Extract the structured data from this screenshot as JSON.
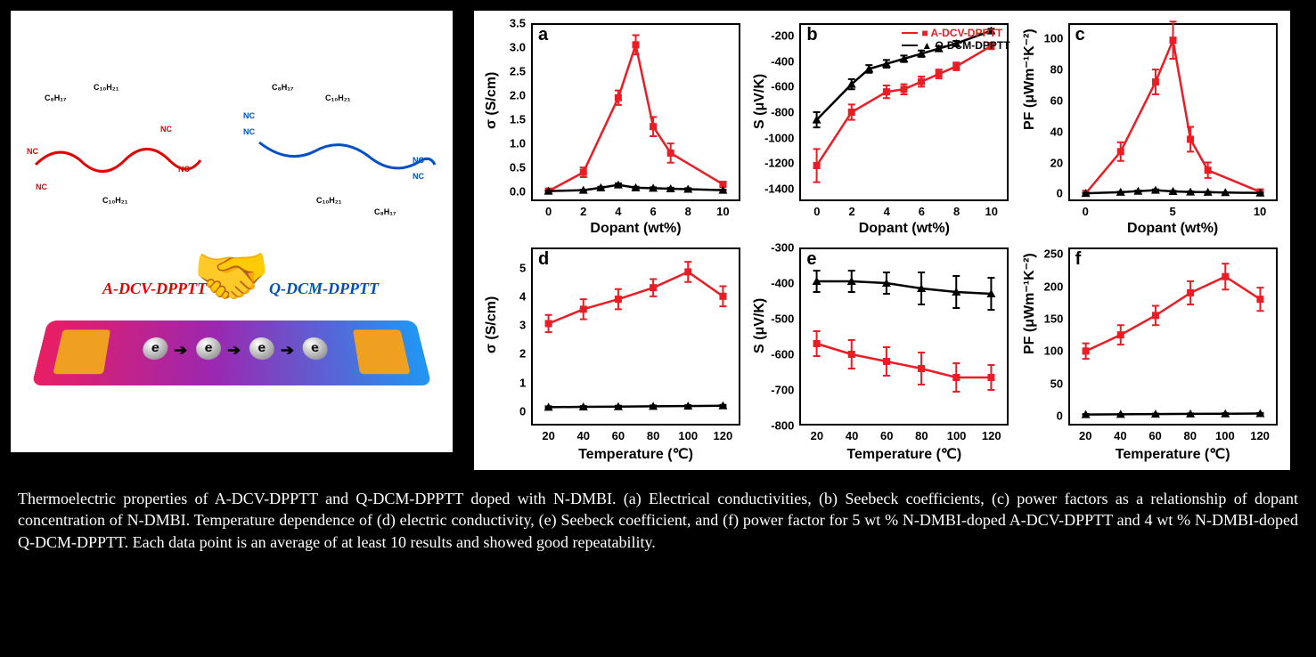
{
  "colors": {
    "red": "#ed1c24",
    "black": "#000000",
    "bg": "#ffffff"
  },
  "series_label_red": "A-DCV-DPPTT",
  "series_label_black": "Q-DCM-DPPTT",
  "illustration": {
    "label_red": "A-DCV-DPPTT",
    "label_blue": "Q-DCM-DPPTT",
    "electron_glyph": "e",
    "alkyls": [
      "C₈H₁₇",
      "C₁₀H₂₁",
      "C₈H₁₇",
      "C₁₀H₂₁",
      "C₈H₁₇",
      "C₁₀H₂₁",
      "C₁₀H₂₁",
      "C₈H₁₇"
    ],
    "cn": "NC"
  },
  "panels": {
    "a": {
      "letter": "a",
      "xlabel": "Dopant (wt%)",
      "ylabel": "σ (S/cm)",
      "xlim": [
        -1,
        11
      ],
      "ylim": [
        -0.2,
        3.5
      ],
      "xticks": [
        0,
        2,
        4,
        6,
        8,
        10
      ],
      "yticks": [
        0.0,
        0.5,
        1.0,
        1.5,
        2.0,
        2.5,
        3.0,
        3.5
      ],
      "ytick_labels": [
        "0.0",
        "0.5",
        "1.0",
        "1.5",
        "2.0",
        "2.5",
        "3.0",
        "3.5"
      ],
      "red": {
        "x": [
          0,
          2,
          4,
          5,
          6,
          7,
          10
        ],
        "y": [
          0.01,
          0.4,
          1.95,
          3.05,
          1.35,
          0.8,
          0.15
        ],
        "err": [
          0.01,
          0.1,
          0.15,
          0.2,
          0.2,
          0.2,
          0.05
        ]
      },
      "blk": {
        "x": [
          0,
          2,
          3,
          4,
          5,
          6,
          7,
          8,
          10
        ],
        "y": [
          0.01,
          0.03,
          0.08,
          0.14,
          0.08,
          0.07,
          0.06,
          0.05,
          0.03
        ],
        "err": [
          0.01,
          0.01,
          0.02,
          0.03,
          0.02,
          0.02,
          0.02,
          0.02,
          0.01
        ]
      }
    },
    "b": {
      "letter": "b",
      "xlabel": "Dopant (wt%)",
      "ylabel": "S (μV/K)",
      "legend": true,
      "xlim": [
        -1,
        11
      ],
      "ylim": [
        -1500,
        -100
      ],
      "xticks": [
        0,
        2,
        4,
        6,
        8,
        10
      ],
      "yticks": [
        -1400,
        -1200,
        -1000,
        -800,
        -600,
        -400,
        -200
      ],
      "ytick_labels": [
        "-1400",
        "-1200",
        "-1000",
        "-800",
        "-600",
        "-400",
        "-200"
      ],
      "red": {
        "x": [
          0,
          2,
          4,
          5,
          6,
          7,
          8,
          10
        ],
        "y": [
          -1220,
          -800,
          -640,
          -620,
          -560,
          -500,
          -440,
          -280
        ],
        "err": [
          130,
          60,
          50,
          40,
          40,
          35,
          30,
          25
        ]
      },
      "blk": {
        "x": [
          0,
          2,
          3,
          4,
          5,
          6,
          7,
          8,
          10
        ],
        "y": [
          -860,
          -580,
          -460,
          -420,
          -380,
          -340,
          -300,
          -260,
          -160
        ],
        "err": [
          60,
          40,
          30,
          30,
          25,
          25,
          20,
          20,
          15
        ]
      }
    },
    "c": {
      "letter": "c",
      "xlabel": "Dopant (wt%)",
      "ylabel": "PF (μWm⁻¹K⁻²)",
      "xlim": [
        -1,
        11
      ],
      "ylim": [
        -5,
        110
      ],
      "xticks": [
        0,
        5,
        10
      ],
      "yticks": [
        0,
        20,
        40,
        60,
        80,
        100
      ],
      "ytick_labels": [
        "0",
        "20",
        "40",
        "60",
        "80",
        "100"
      ],
      "red": {
        "x": [
          0,
          2,
          4,
          5,
          6,
          7,
          10
        ],
        "y": [
          0.1,
          27,
          72,
          99,
          35,
          15,
          1
        ],
        "err": [
          0.1,
          6,
          8,
          12,
          8,
          5,
          0.5
        ]
      },
      "blk": {
        "x": [
          0,
          2,
          3,
          4,
          5,
          6,
          7,
          8,
          10
        ],
        "y": [
          0.1,
          0.8,
          1.5,
          2.1,
          1.3,
          1.0,
          0.8,
          0.6,
          0.3
        ],
        "err": [
          0.1,
          0.3,
          0.4,
          0.5,
          0.4,
          0.3,
          0.3,
          0.2,
          0.1
        ]
      }
    },
    "d": {
      "letter": "d",
      "xlabel": "Temperature (℃)",
      "ylabel": "σ (S/cm)",
      "xlim": [
        10,
        130
      ],
      "ylim": [
        -0.5,
        5.7
      ],
      "xticks": [
        20,
        40,
        60,
        80,
        100,
        120
      ],
      "yticks": [
        0,
        1,
        2,
        3,
        4,
        5
      ],
      "ytick_labels": [
        "0",
        "1",
        "2",
        "3",
        "4",
        "5"
      ],
      "red": {
        "x": [
          20,
          40,
          60,
          80,
          100,
          120
        ],
        "y": [
          3.05,
          3.55,
          3.9,
          4.3,
          4.85,
          4.0
        ],
        "err": [
          0.3,
          0.35,
          0.35,
          0.3,
          0.35,
          0.35
        ]
      },
      "blk": {
        "x": [
          20,
          40,
          60,
          80,
          100,
          120
        ],
        "y": [
          0.14,
          0.15,
          0.16,
          0.17,
          0.18,
          0.19
        ],
        "err": [
          0.03,
          0.03,
          0.03,
          0.03,
          0.03,
          0.03
        ]
      }
    },
    "e": {
      "letter": "e",
      "xlabel": "Temperature (℃)",
      "ylabel": "S (μV/K)",
      "xlim": [
        10,
        130
      ],
      "ylim": [
        -800,
        -300
      ],
      "xticks": [
        20,
        40,
        60,
        80,
        100,
        120
      ],
      "yticks": [
        -800,
        -700,
        -600,
        -500,
        -400,
        -300
      ],
      "ytick_labels": [
        "-800",
        "-700",
        "-600",
        "-500",
        "-400",
        "-300"
      ],
      "red": {
        "x": [
          20,
          40,
          60,
          80,
          100,
          120
        ],
        "y": [
          -570,
          -600,
          -620,
          -640,
          -665,
          -665
        ],
        "err": [
          35,
          40,
          40,
          45,
          40,
          35
        ]
      },
      "blk": {
        "x": [
          20,
          40,
          60,
          80,
          100,
          120
        ],
        "y": [
          -395,
          -395,
          -400,
          -415,
          -425,
          -430
        ],
        "err": [
          30,
          30,
          30,
          45,
          45,
          45
        ]
      }
    },
    "f": {
      "letter": "f",
      "xlabel": "Temperature (℃)",
      "ylabel": "PF (μWm⁻¹K⁻²)",
      "xlim": [
        10,
        130
      ],
      "ylim": [
        -15,
        260
      ],
      "xticks": [
        20,
        40,
        60,
        80,
        100,
        120
      ],
      "yticks": [
        0,
        50,
        100,
        150,
        200,
        250
      ],
      "ytick_labels": [
        "0",
        "50",
        "100",
        "150",
        "200",
        "250"
      ],
      "red": {
        "x": [
          20,
          40,
          60,
          80,
          100,
          120
        ],
        "y": [
          100,
          125,
          155,
          190,
          215,
          180
        ],
        "err": [
          12,
          15,
          15,
          18,
          20,
          18
        ]
      },
      "blk": {
        "x": [
          20,
          40,
          60,
          80,
          100,
          120
        ],
        "y": [
          2.1,
          2.4,
          2.7,
          3.0,
          3.3,
          3.6
        ],
        "err": [
          0.6,
          0.6,
          0.7,
          0.7,
          0.7,
          0.8
        ]
      }
    }
  },
  "caption": "Thermoelectric properties of A-DCV-DPPTT and Q-DCM-DPPTT doped with N-DMBI. (a) Electrical conductivities, (b) Seebeck coefficients, (c) power factors as a relationship of dopant concentration of N-DMBI. Temperature dependence of (d) electric conductivity, (e) Seebeck coefficient, and (f) power factor for 5 wt % N-DMBI-doped A-DCV-DPPTT and 4 wt % N-DMBI-doped Q-DCM-DPPTT. Each data point is an average of at least 10 results and showed good repeatability."
}
